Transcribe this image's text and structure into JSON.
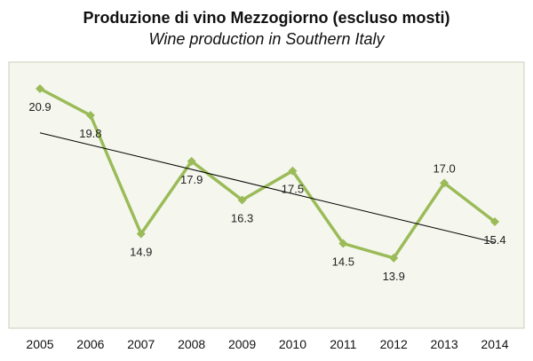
{
  "chart_data": {
    "type": "line",
    "title": "Produzione di vino Mezzogiorno (escluso mosti)",
    "subtitle": "Wine production in Southern Italy",
    "xlabel": "",
    "ylabel": "",
    "categories": [
      "2005",
      "2006",
      "2007",
      "2008",
      "2009",
      "2010",
      "2011",
      "2012",
      "2013",
      "2014"
    ],
    "series": [
      {
        "values": [
          20.9,
          19.8,
          14.9,
          17.9,
          16.3,
          17.5,
          14.5,
          13.9,
          17.0,
          15.4
        ],
        "labels": [
          "20.9",
          "19.8",
          "14.9",
          "17.9",
          "16.3",
          "17.5",
          "14.5",
          "13.9",
          "17.0",
          "15.4"
        ]
      }
    ],
    "trendline": {
      "type": "linear"
    },
    "ylim": [
      11,
      22
    ],
    "grid": false,
    "legend": "none",
    "colors": {
      "series": "#9bbb59",
      "trend": "#000000",
      "plot_background": "#f5f7ee",
      "plot_border": "#c9cfb8"
    }
  }
}
